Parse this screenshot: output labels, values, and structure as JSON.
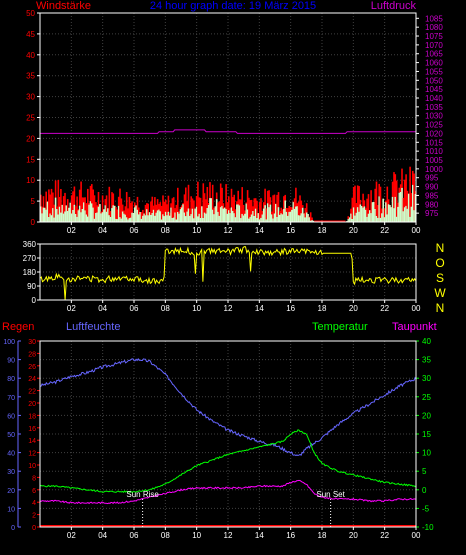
{
  "header": {
    "left_label": "Windstärke",
    "center_title": "24 hour graph date: 19 März 2015",
    "right_label": "Luftdruck"
  },
  "colors": {
    "wind_gust": "#ff0000",
    "wind_avg": "#ccffcc",
    "pressure": "#cc00cc",
    "direction": "#ffff00",
    "humidity": "#6666ff",
    "temperature": "#00ff00",
    "dewpoint": "#ff00ff",
    "rain": "#ff0000",
    "title": "#0000ff",
    "axis": "#ffffff",
    "grid": "#404040"
  },
  "chart_data": [
    {
      "type": "area",
      "id": "wind_pressure",
      "x_ticks": [
        "02",
        "04",
        "06",
        "08",
        "10",
        "12",
        "14",
        "16",
        "18",
        "20",
        "22",
        "00"
      ],
      "left_axis": {
        "label": "Windstärke",
        "range": [
          0,
          50
        ],
        "ticks": [
          "0",
          "5",
          "10",
          "15",
          "20",
          "25",
          "30",
          "35",
          "40",
          "45",
          "50"
        ]
      },
      "right_axis": {
        "label": "Luftdruck",
        "range": [
          970,
          1088
        ],
        "ticks": [
          "975",
          "980",
          "985",
          "990",
          "995",
          "1000",
          "1005",
          "1010",
          "1015",
          "1020",
          "1025",
          "1030",
          "1035",
          "1040",
          "1045",
          "1050",
          "1055",
          "1060",
          "1065",
          "1070",
          "1075",
          "1080",
          "1085"
        ]
      },
      "grid": true,
      "series": [
        {
          "name": "Luftdruck",
          "x": [
            0,
            7.5,
            7.6,
            8.5,
            8.6,
            10.5,
            10.6,
            12.5,
            12.6,
            19.5,
            19.6,
            24
          ],
          "values": [
            1020,
            1020,
            1021,
            1021,
            1022,
            1022,
            1021,
            1021,
            1020,
            1020,
            1021,
            1021
          ]
        },
        {
          "name": "Wind gust",
          "x": [
            0,
            2,
            4,
            5,
            6,
            7,
            8,
            9,
            10,
            11,
            12,
            13,
            14,
            15,
            16,
            17,
            17.5,
            19.5,
            20,
            21,
            22,
            23,
            24
          ],
          "values": [
            8,
            8,
            7,
            7,
            6,
            5,
            5,
            7,
            8,
            8,
            7,
            7,
            6,
            7,
            8,
            4,
            0,
            0,
            7,
            8,
            9,
            10,
            11
          ]
        },
        {
          "name": "Wind avg",
          "x": [
            0,
            2,
            4,
            5,
            6,
            7,
            8,
            9,
            10,
            11,
            12,
            13,
            14,
            15,
            16,
            17,
            17.5,
            19.5,
            20,
            21,
            22,
            23,
            24
          ],
          "values": [
            4,
            4,
            3,
            3,
            3,
            2,
            2,
            3,
            4,
            4,
            3,
            3,
            3,
            3,
            4,
            2,
            0,
            0,
            3,
            4,
            5,
            6,
            6
          ]
        }
      ]
    },
    {
      "type": "line",
      "id": "wind_direction",
      "x_ticks": [
        "02",
        "04",
        "06",
        "08",
        "10",
        "12",
        "14",
        "16",
        "18",
        "20",
        "22",
        "00"
      ],
      "left_axis": {
        "range": [
          0,
          360
        ],
        "ticks": [
          "0",
          "90",
          "180",
          "270",
          "360"
        ]
      },
      "right_axis": {
        "ticks": [
          "N",
          "W",
          "S",
          "O",
          "N"
        ]
      },
      "grid": true,
      "series": [
        {
          "name": "Windrichtung",
          "x": [
            0,
            1,
            2,
            3,
            4,
            5,
            6,
            7,
            7.9,
            8,
            9,
            10,
            11,
            12,
            13,
            14,
            15,
            16,
            17,
            17.9,
            18,
            19,
            19.9,
            20,
            21,
            22,
            23,
            24
          ],
          "values": [
            130,
            150,
            135,
            140,
            130,
            145,
            140,
            125,
            115,
            310,
            320,
            305,
            315,
            310,
            325,
            310,
            305,
            315,
            310,
            305,
            300,
            300,
            300,
            120,
            130,
            125,
            130,
            125
          ]
        }
      ]
    },
    {
      "type": "line",
      "id": "climate",
      "x_ticks": [
        "02",
        "04",
        "06",
        "08",
        "10",
        "12",
        "14",
        "16",
        "18",
        "20",
        "22",
        "00"
      ],
      "labels": {
        "rain": "Regen",
        "humidity": "Luftfeuchte",
        "temperature": "Temperatur",
        "dewpoint": "Taupunkt"
      },
      "axis_humidity": {
        "range": [
          0,
          100
        ],
        "ticks": [
          "0",
          "10",
          "20",
          "30",
          "40",
          "50",
          "60",
          "70",
          "80",
          "90",
          "100"
        ]
      },
      "axis_rain": {
        "range": [
          0,
          30
        ],
        "ticks": [
          "0",
          "2",
          "4",
          "6",
          "8",
          "10",
          "12",
          "14",
          "16",
          "18",
          "20",
          "22",
          "24",
          "26",
          "28",
          "30"
        ]
      },
      "axis_temperature": {
        "range": [
          -10,
          40
        ],
        "ticks": [
          "-10",
          "-5",
          "0",
          "5",
          "10",
          "15",
          "20",
          "25",
          "30",
          "35",
          "40"
        ]
      },
      "annotations": [
        {
          "text": "Sun Rise",
          "x": 6.55
        },
        {
          "text": "Sun Set",
          "x": 18.55
        }
      ],
      "grid": true,
      "series": [
        {
          "name": "Luftfeuchte",
          "x": [
            0,
            1,
            2,
            3,
            4,
            5,
            6,
            6.5,
            7,
            8,
            9,
            10,
            11,
            12,
            13,
            14,
            15,
            16,
            16.5,
            17,
            18,
            19,
            20,
            21,
            22,
            23,
            24
          ],
          "values": [
            76,
            78,
            81,
            83,
            86,
            88,
            90,
            90,
            89,
            82,
            72,
            63,
            57,
            52,
            49,
            46,
            44,
            40,
            38,
            42,
            48,
            55,
            61,
            66,
            71,
            76,
            80
          ]
        },
        {
          "name": "Temperatur",
          "x": [
            0,
            1,
            2,
            3,
            4,
            5,
            6,
            7,
            8,
            9,
            10,
            11,
            12,
            13,
            14,
            15,
            15.5,
            16,
            16.5,
            17,
            17.5,
            18,
            19,
            20,
            21,
            22,
            23,
            24
          ],
          "values": [
            1,
            1,
            0.5,
            0,
            -0.5,
            -0.5,
            -0.5,
            0,
            1.5,
            4,
            6.5,
            8,
            9.5,
            10.5,
            11.5,
            12.5,
            13,
            15,
            16,
            15,
            10,
            7,
            5,
            4,
            3,
            2,
            1.5,
            1
          ]
        },
        {
          "name": "Taupunkt",
          "x": [
            0,
            1,
            2,
            3,
            4,
            5,
            6,
            7,
            8,
            9,
            10,
            11,
            12,
            13,
            14,
            15,
            15.5,
            16,
            16.5,
            17,
            17.5,
            18,
            19,
            20,
            21,
            22,
            23,
            24
          ],
          "values": [
            -3,
            -3,
            -3.5,
            -3.5,
            -3.5,
            -3.5,
            -3,
            -2,
            -1,
            0,
            0.5,
            0.5,
            0.5,
            0.5,
            1,
            1,
            1,
            2,
            2.5,
            1.5,
            -1,
            -2,
            -2.5,
            -2.5,
            -3,
            -3,
            -2.5,
            -2.5
          ]
        },
        {
          "name": "Regen",
          "x": [
            0,
            24
          ],
          "values": [
            0,
            0
          ]
        }
      ]
    }
  ]
}
